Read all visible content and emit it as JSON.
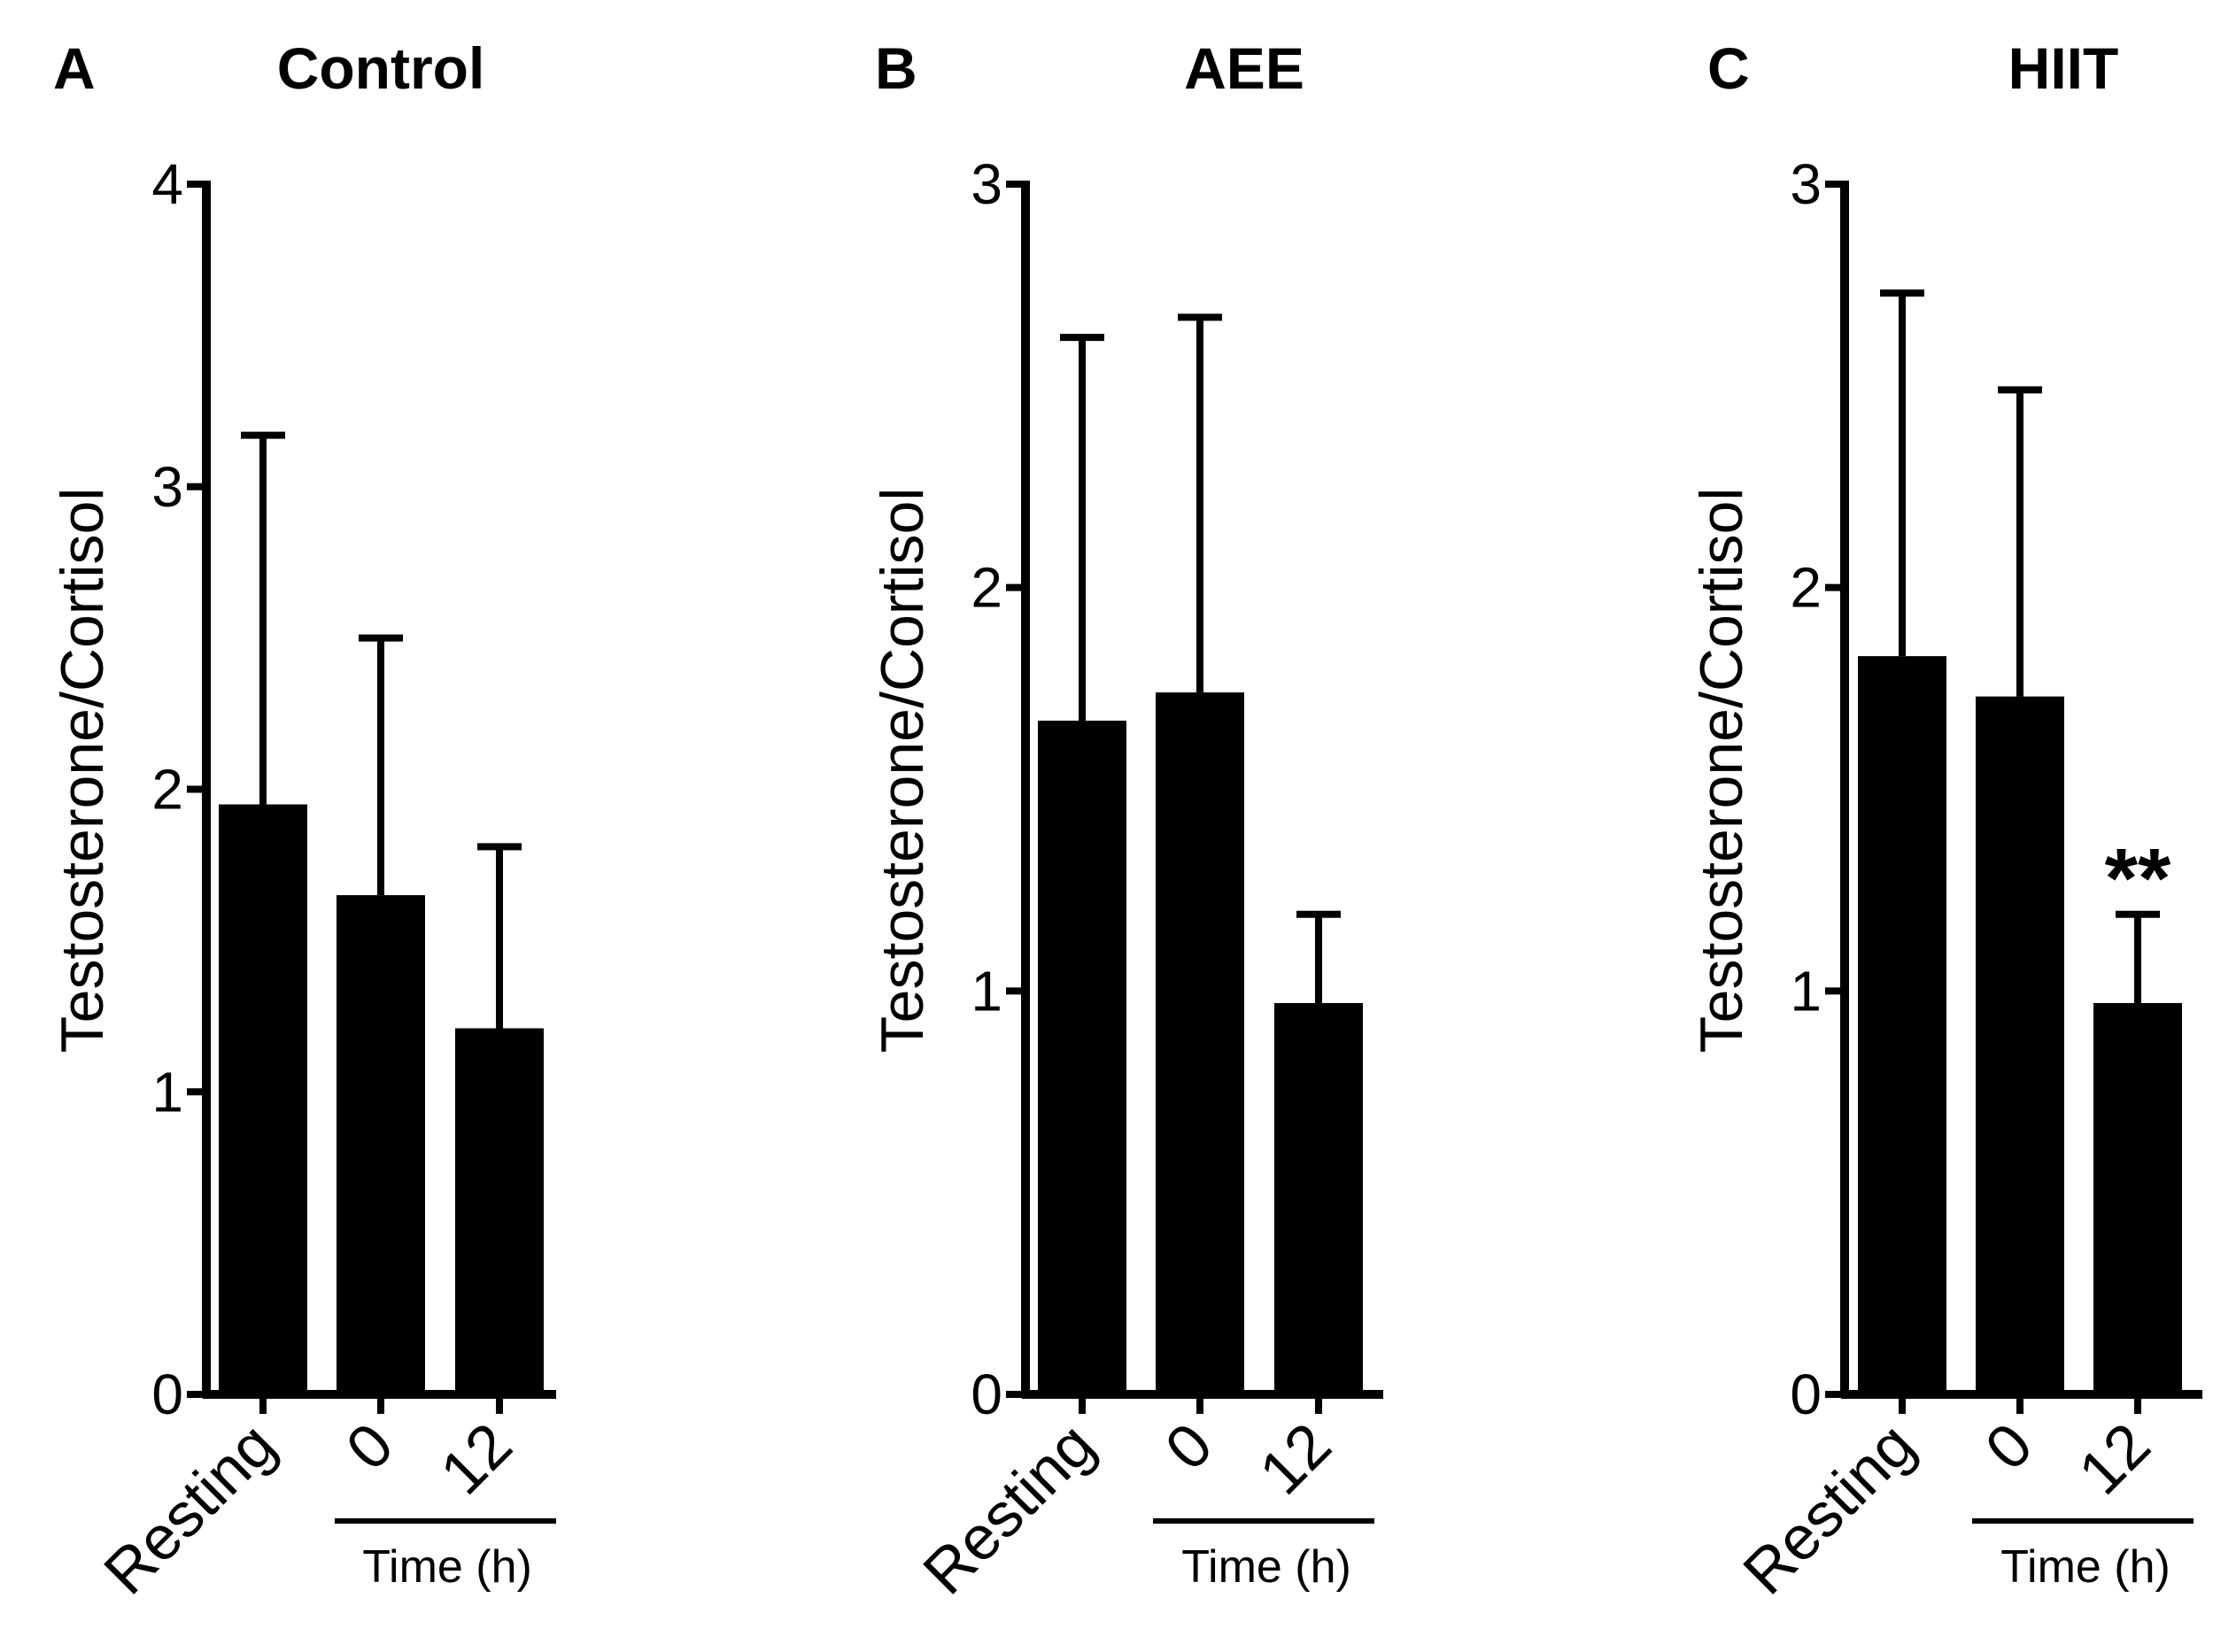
{
  "chart_data": [
    {
      "type": "bar",
      "panel": "A",
      "title": "Control",
      "ylabel": "Testosterone/Cortisol",
      "xlabel": "Time (h)",
      "categories": [
        "Resting",
        "0",
        "12"
      ],
      "values": [
        1.95,
        1.65,
        1.21
      ],
      "errors": [
        1.22,
        0.85,
        0.6
      ],
      "ylim": [
        0,
        4
      ],
      "yticks": [
        "0",
        "1",
        "2",
        "3",
        "4"
      ],
      "annotations": [
        "",
        "",
        ""
      ],
      "color": "#000000"
    },
    {
      "type": "bar",
      "panel": "B",
      "title": "AEE",
      "ylabel": "Testosterone/Cortisol",
      "xlabel": "Time (h)",
      "categories": [
        "Resting",
        "0",
        "12"
      ],
      "values": [
        1.67,
        1.74,
        0.97
      ],
      "errors": [
        0.95,
        0.93,
        0.22
      ],
      "ylim": [
        0,
        3
      ],
      "yticks": [
        "0",
        "1",
        "2",
        "3"
      ],
      "annotations": [
        "",
        "",
        ""
      ],
      "color": "#000000"
    },
    {
      "type": "bar",
      "panel": "C",
      "title": "HIIT",
      "ylabel": "Testosterone/Cortisol",
      "xlabel": "Time (h)",
      "categories": [
        "Resting",
        "0",
        "12"
      ],
      "values": [
        1.83,
        1.73,
        0.97
      ],
      "errors": [
        0.9,
        0.76,
        0.22
      ],
      "ylim": [
        0,
        3
      ],
      "yticks": [
        "0",
        "1",
        "2",
        "3"
      ],
      "annotations": [
        "",
        "",
        "**"
      ],
      "color": "#000000"
    }
  ]
}
